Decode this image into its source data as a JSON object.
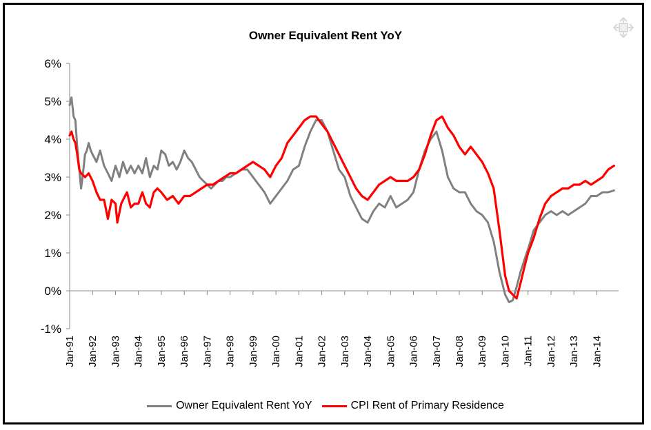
{
  "chart_data": {
    "type": "line",
    "title": "Owner Equivalent Rent YoY",
    "xlabel": "",
    "ylabel": "",
    "ylim": [
      -1,
      6
    ],
    "y_ticks": [
      {
        "value": -1,
        "label": "-1%"
      },
      {
        "value": 0,
        "label": "0%"
      },
      {
        "value": 1,
        "label": "1%"
      },
      {
        "value": 2,
        "label": "2%"
      },
      {
        "value": 3,
        "label": "3%"
      },
      {
        "value": 4,
        "label": "4%"
      },
      {
        "value": 5,
        "label": "5%"
      },
      {
        "value": 6,
        "label": "6%"
      }
    ],
    "xlim": [
      1991.0,
      2014.95
    ],
    "x_ticks": [
      {
        "value": 1991,
        "label": "Jan-91"
      },
      {
        "value": 1992,
        "label": "Jan-92"
      },
      {
        "value": 1993,
        "label": "Jan-93"
      },
      {
        "value": 1994,
        "label": "Jan-94"
      },
      {
        "value": 1995,
        "label": "Jan-95"
      },
      {
        "value": 1996,
        "label": "Jan-96"
      },
      {
        "value": 1997,
        "label": "Jan-97"
      },
      {
        "value": 1998,
        "label": "Jan-98"
      },
      {
        "value": 1999,
        "label": "Jan-99"
      },
      {
        "value": 2000,
        "label": "Jan-00"
      },
      {
        "value": 2001,
        "label": "Jan-01"
      },
      {
        "value": 2002,
        "label": "Jan-02"
      },
      {
        "value": 2003,
        "label": "Jan-03"
      },
      {
        "value": 2004,
        "label": "Jan-04"
      },
      {
        "value": 2005,
        "label": "Jan-05"
      },
      {
        "value": 2006,
        "label": "Jan-06"
      },
      {
        "value": 2007,
        "label": "Jan-07"
      },
      {
        "value": 2008,
        "label": "Jan-08"
      },
      {
        "value": 2009,
        "label": "Jan-09"
      },
      {
        "value": 2010,
        "label": "Jan-10"
      },
      {
        "value": 2011,
        "label": "Jan-11"
      },
      {
        "value": 2012,
        "label": "Jan-12"
      },
      {
        "value": 2013,
        "label": "Jan-13"
      },
      {
        "value": 2014,
        "label": "Jan-14"
      }
    ],
    "legend_position": "bottom",
    "series": [
      {
        "name": "Owner Equivalent Rent YoY",
        "color": "#808080",
        "points": [
          [
            1991.0,
            4.9
          ],
          [
            1991.08,
            5.1
          ],
          [
            1991.17,
            4.6
          ],
          [
            1991.25,
            4.5
          ],
          [
            1991.33,
            3.8
          ],
          [
            1991.42,
            3.2
          ],
          [
            1991.5,
            2.7
          ],
          [
            1991.58,
            3.1
          ],
          [
            1991.67,
            3.6
          ],
          [
            1991.75,
            3.7
          ],
          [
            1991.83,
            3.9
          ],
          [
            1991.92,
            3.7
          ],
          [
            1992.0,
            3.6
          ],
          [
            1992.17,
            3.4
          ],
          [
            1992.33,
            3.7
          ],
          [
            1992.5,
            3.3
          ],
          [
            1992.67,
            3.1
          ],
          [
            1992.83,
            2.9
          ],
          [
            1993.0,
            3.3
          ],
          [
            1993.17,
            3.0
          ],
          [
            1993.33,
            3.4
          ],
          [
            1993.5,
            3.1
          ],
          [
            1993.67,
            3.3
          ],
          [
            1993.83,
            3.1
          ],
          [
            1994.0,
            3.3
          ],
          [
            1994.17,
            3.1
          ],
          [
            1994.33,
            3.5
          ],
          [
            1994.5,
            3.0
          ],
          [
            1994.67,
            3.3
          ],
          [
            1994.83,
            3.2
          ],
          [
            1995.0,
            3.7
          ],
          [
            1995.17,
            3.6
          ],
          [
            1995.33,
            3.3
          ],
          [
            1995.5,
            3.4
          ],
          [
            1995.67,
            3.2
          ],
          [
            1995.83,
            3.4
          ],
          [
            1996.0,
            3.7
          ],
          [
            1996.17,
            3.5
          ],
          [
            1996.33,
            3.4
          ],
          [
            1996.5,
            3.2
          ],
          [
            1996.67,
            3.0
          ],
          [
            1996.83,
            2.9
          ],
          [
            1997.0,
            2.8
          ],
          [
            1997.17,
            2.7
          ],
          [
            1997.33,
            2.8
          ],
          [
            1997.5,
            2.9
          ],
          [
            1997.67,
            2.9
          ],
          [
            1997.83,
            3.0
          ],
          [
            1998.0,
            3.0
          ],
          [
            1998.25,
            3.1
          ],
          [
            1998.5,
            3.2
          ],
          [
            1998.75,
            3.2
          ],
          [
            1999.0,
            3.0
          ],
          [
            1999.25,
            2.8
          ],
          [
            1999.5,
            2.6
          ],
          [
            1999.75,
            2.3
          ],
          [
            2000.0,
            2.5
          ],
          [
            2000.25,
            2.7
          ],
          [
            2000.5,
            2.9
          ],
          [
            2000.75,
            3.2
          ],
          [
            2001.0,
            3.3
          ],
          [
            2001.25,
            3.8
          ],
          [
            2001.5,
            4.2
          ],
          [
            2001.75,
            4.5
          ],
          [
            2002.0,
            4.5
          ],
          [
            2002.25,
            4.2
          ],
          [
            2002.5,
            3.7
          ],
          [
            2002.75,
            3.2
          ],
          [
            2003.0,
            3.0
          ],
          [
            2003.25,
            2.5
          ],
          [
            2003.5,
            2.2
          ],
          [
            2003.75,
            1.9
          ],
          [
            2004.0,
            1.8
          ],
          [
            2004.25,
            2.1
          ],
          [
            2004.5,
            2.3
          ],
          [
            2004.75,
            2.2
          ],
          [
            2005.0,
            2.5
          ],
          [
            2005.25,
            2.2
          ],
          [
            2005.5,
            2.3
          ],
          [
            2005.75,
            2.4
          ],
          [
            2006.0,
            2.6
          ],
          [
            2006.25,
            3.2
          ],
          [
            2006.5,
            3.7
          ],
          [
            2006.75,
            4.0
          ],
          [
            2007.0,
            4.2
          ],
          [
            2007.25,
            3.7
          ],
          [
            2007.5,
            3.0
          ],
          [
            2007.75,
            2.7
          ],
          [
            2008.0,
            2.6
          ],
          [
            2008.25,
            2.6
          ],
          [
            2008.5,
            2.3
          ],
          [
            2008.75,
            2.1
          ],
          [
            2009.0,
            2.0
          ],
          [
            2009.25,
            1.8
          ],
          [
            2009.5,
            1.3
          ],
          [
            2009.75,
            0.5
          ],
          [
            2010.0,
            -0.1
          ],
          [
            2010.17,
            -0.3
          ],
          [
            2010.33,
            -0.25
          ],
          [
            2010.5,
            0.1
          ],
          [
            2010.67,
            0.5
          ],
          [
            2010.83,
            0.8
          ],
          [
            2011.0,
            1.1
          ],
          [
            2011.25,
            1.6
          ],
          [
            2011.5,
            1.8
          ],
          [
            2011.75,
            2.0
          ],
          [
            2012.0,
            2.1
          ],
          [
            2012.25,
            2.0
          ],
          [
            2012.5,
            2.1
          ],
          [
            2012.75,
            2.0
          ],
          [
            2013.0,
            2.1
          ],
          [
            2013.25,
            2.2
          ],
          [
            2013.5,
            2.3
          ],
          [
            2013.75,
            2.5
          ],
          [
            2014.0,
            2.5
          ],
          [
            2014.25,
            2.6
          ],
          [
            2014.5,
            2.6
          ],
          [
            2014.75,
            2.65
          ]
        ]
      },
      {
        "name": "CPI Rent of Primary Residence",
        "color": "#ff0000",
        "points": [
          [
            1991.0,
            4.1
          ],
          [
            1991.08,
            4.2
          ],
          [
            1991.17,
            4.0
          ],
          [
            1991.25,
            3.9
          ],
          [
            1991.33,
            3.6
          ],
          [
            1991.42,
            3.2
          ],
          [
            1991.5,
            3.1
          ],
          [
            1991.67,
            3.0
          ],
          [
            1991.83,
            3.1
          ],
          [
            1992.0,
            2.9
          ],
          [
            1992.17,
            2.6
          ],
          [
            1992.33,
            2.4
          ],
          [
            1992.5,
            2.4
          ],
          [
            1992.67,
            1.9
          ],
          [
            1992.83,
            2.4
          ],
          [
            1993.0,
            2.3
          ],
          [
            1993.08,
            1.8
          ],
          [
            1993.25,
            2.3
          ],
          [
            1993.5,
            2.6
          ],
          [
            1993.67,
            2.2
          ],
          [
            1993.83,
            2.3
          ],
          [
            1994.0,
            2.3
          ],
          [
            1994.17,
            2.6
          ],
          [
            1994.33,
            2.3
          ],
          [
            1994.5,
            2.2
          ],
          [
            1994.67,
            2.6
          ],
          [
            1994.83,
            2.7
          ],
          [
            1995.0,
            2.6
          ],
          [
            1995.25,
            2.4
          ],
          [
            1995.5,
            2.5
          ],
          [
            1995.75,
            2.3
          ],
          [
            1996.0,
            2.5
          ],
          [
            1996.25,
            2.5
          ],
          [
            1996.5,
            2.6
          ],
          [
            1996.75,
            2.7
          ],
          [
            1997.0,
            2.8
          ],
          [
            1997.25,
            2.8
          ],
          [
            1997.5,
            2.9
          ],
          [
            1997.75,
            3.0
          ],
          [
            1998.0,
            3.1
          ],
          [
            1998.25,
            3.1
          ],
          [
            1998.5,
            3.2
          ],
          [
            1998.75,
            3.3
          ],
          [
            1999.0,
            3.4
          ],
          [
            1999.25,
            3.3
          ],
          [
            1999.5,
            3.2
          ],
          [
            1999.75,
            3.0
          ],
          [
            2000.0,
            3.3
          ],
          [
            2000.25,
            3.5
          ],
          [
            2000.5,
            3.9
          ],
          [
            2000.75,
            4.1
          ],
          [
            2001.0,
            4.3
          ],
          [
            2001.25,
            4.5
          ],
          [
            2001.5,
            4.6
          ],
          [
            2001.75,
            4.6
          ],
          [
            2002.0,
            4.4
          ],
          [
            2002.25,
            4.2
          ],
          [
            2002.5,
            3.9
          ],
          [
            2002.75,
            3.6
          ],
          [
            2003.0,
            3.3
          ],
          [
            2003.25,
            3.0
          ],
          [
            2003.5,
            2.7
          ],
          [
            2003.75,
            2.5
          ],
          [
            2004.0,
            2.4
          ],
          [
            2004.25,
            2.6
          ],
          [
            2004.5,
            2.8
          ],
          [
            2004.75,
            2.9
          ],
          [
            2005.0,
            3.0
          ],
          [
            2005.25,
            2.9
          ],
          [
            2005.5,
            2.9
          ],
          [
            2005.75,
            2.9
          ],
          [
            2006.0,
            3.0
          ],
          [
            2006.25,
            3.2
          ],
          [
            2006.5,
            3.6
          ],
          [
            2006.75,
            4.1
          ],
          [
            2007.0,
            4.5
          ],
          [
            2007.25,
            4.6
          ],
          [
            2007.5,
            4.3
          ],
          [
            2007.75,
            4.1
          ],
          [
            2008.0,
            3.8
          ],
          [
            2008.25,
            3.6
          ],
          [
            2008.5,
            3.8
          ],
          [
            2008.75,
            3.6
          ],
          [
            2009.0,
            3.4
          ],
          [
            2009.25,
            3.1
          ],
          [
            2009.5,
            2.7
          ],
          [
            2009.75,
            1.6
          ],
          [
            2010.0,
            0.4
          ],
          [
            2010.17,
            0.0
          ],
          [
            2010.33,
            -0.1
          ],
          [
            2010.5,
            -0.2
          ],
          [
            2010.67,
            0.2
          ],
          [
            2010.83,
            0.6
          ],
          [
            2011.0,
            1.0
          ],
          [
            2011.25,
            1.4
          ],
          [
            2011.5,
            1.9
          ],
          [
            2011.75,
            2.3
          ],
          [
            2012.0,
            2.5
          ],
          [
            2012.25,
            2.6
          ],
          [
            2012.5,
            2.7
          ],
          [
            2012.75,
            2.7
          ],
          [
            2013.0,
            2.8
          ],
          [
            2013.25,
            2.8
          ],
          [
            2013.5,
            2.9
          ],
          [
            2013.75,
            2.8
          ],
          [
            2014.0,
            2.9
          ],
          [
            2014.25,
            3.0
          ],
          [
            2014.5,
            3.2
          ],
          [
            2014.75,
            3.3
          ]
        ]
      }
    ]
  }
}
